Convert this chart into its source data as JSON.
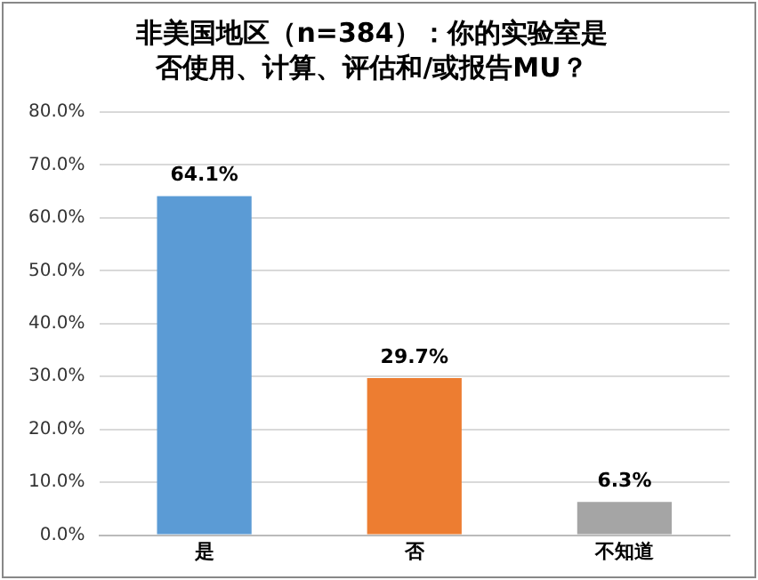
{
  "chart_data": {
    "type": "bar",
    "title": "非美国地区（n=384）：你的实验室是否使用、计算、评估和/或报告MU？",
    "categories": [
      "是",
      "否",
      "不知道"
    ],
    "values": [
      64.1,
      29.7,
      6.3
    ],
    "colors": [
      "#5b9bd5",
      "#ed7d31",
      "#a5a5a5"
    ],
    "value_labels": [
      "64.1%",
      "29.7%",
      "6.3%"
    ],
    "ylim": [
      0,
      80
    ],
    "yticks": [
      {
        "value": 0,
        "label": "0.0%"
      },
      {
        "value": 10,
        "label": "10.0%"
      },
      {
        "value": 20,
        "label": "20.0%"
      },
      {
        "value": 30,
        "label": "30.0%"
      },
      {
        "value": 40,
        "label": "40.0%"
      },
      {
        "value": 50,
        "label": "50.0%"
      },
      {
        "value": 60,
        "label": "60.0%"
      },
      {
        "value": 70,
        "label": "70.0%"
      },
      {
        "value": 80,
        "label": "80.0%"
      }
    ],
    "grid": "y",
    "legend": false
  }
}
